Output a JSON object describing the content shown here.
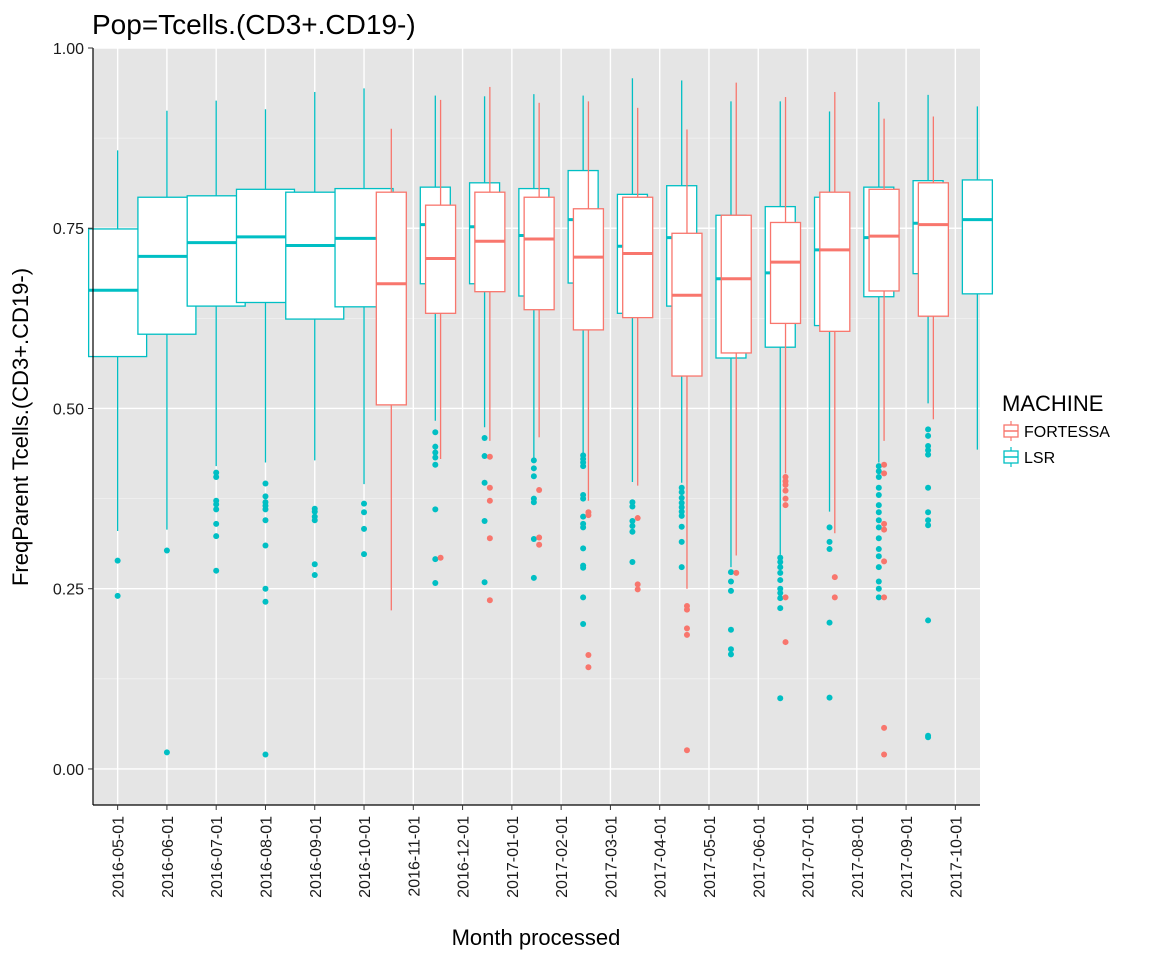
{
  "colors": {
    "FORTESSA": "#F8766D",
    "LSR": "#00BFC4",
    "panel": "#E5E5E5",
    "grid": "#FFFFFF"
  },
  "chart_data": {
    "type": "boxplot",
    "title": "Pop=Tcells.(CD3+.CD19-)",
    "xlabel": "Month processed",
    "ylabel": "FreqParent  Tcells.(CD3+.CD19-)",
    "ylim": [
      -0.05,
      1.0
    ],
    "yticks": [
      0.0,
      0.25,
      0.5,
      0.75,
      1.0
    ],
    "ytick_labels": [
      "0.00",
      "0.25",
      "0.50",
      "0.75",
      "1.00"
    ],
    "grid": true,
    "categories": [
      "2016-05-01",
      "2016-06-01",
      "2016-07-01",
      "2016-08-01",
      "2016-09-01",
      "2016-10-01",
      "2016-11-01",
      "2016-12-01",
      "2017-01-01",
      "2017-02-01",
      "2017-03-01",
      "2017-04-01",
      "2017-05-01",
      "2017-06-01",
      "2017-07-01",
      "2017-08-01",
      "2017-09-01",
      "2017-10-01"
    ],
    "legend": {
      "title": "MACHINE",
      "entries": [
        "FORTESSA",
        "LSR"
      ],
      "position": "right"
    },
    "series": [
      {
        "name": "FORTESSA",
        "boxes": [
          null,
          null,
          null,
          null,
          null,
          null,
          {
            "low": 0.22,
            "q1": 0.505,
            "median": 0.673,
            "q3": 0.8,
            "high": 0.888,
            "outliers": []
          },
          {
            "low": 0.43,
            "q1": 0.632,
            "median": 0.708,
            "q3": 0.782,
            "high": 0.928,
            "outliers": [
              0.293
            ]
          },
          {
            "low": 0.455,
            "q1": 0.662,
            "median": 0.732,
            "q3": 0.8,
            "high": 0.946,
            "outliers": [
              0.433,
              0.39,
              0.372,
              0.32,
              0.234
            ]
          },
          {
            "low": 0.46,
            "q1": 0.637,
            "median": 0.735,
            "q3": 0.793,
            "high": 0.924,
            "outliers": [
              0.387,
              0.321,
              0.311
            ]
          },
          {
            "low": 0.372,
            "q1": 0.609,
            "median": 0.71,
            "q3": 0.777,
            "high": 0.926,
            "outliers": [
              0.356,
              0.352,
              0.158,
              0.141
            ]
          },
          {
            "low": 0.393,
            "q1": 0.626,
            "median": 0.715,
            "q3": 0.793,
            "high": 0.917,
            "outliers": [
              0.348,
              0.256,
              0.249
            ]
          },
          {
            "low": 0.25,
            "q1": 0.545,
            "median": 0.657,
            "q3": 0.743,
            "high": 0.887,
            "outliers": [
              0.226,
              0.221,
              0.195,
              0.186,
              0.026
            ]
          },
          {
            "low": 0.296,
            "q1": 0.577,
            "median": 0.68,
            "q3": 0.768,
            "high": 0.952,
            "outliers": [
              0.272
            ]
          },
          {
            "low": 0.41,
            "q1": 0.618,
            "median": 0.703,
            "q3": 0.758,
            "high": 0.932,
            "outliers": [
              0.405,
              0.399,
              0.394,
              0.386,
              0.375,
              0.366,
              0.238,
              0.176
            ]
          },
          {
            "low": 0.327,
            "q1": 0.607,
            "median": 0.72,
            "q3": 0.8,
            "high": 0.939,
            "outliers": [
              0.266,
              0.238
            ]
          },
          {
            "low": 0.455,
            "q1": 0.663,
            "median": 0.739,
            "q3": 0.804,
            "high": 0.902,
            "outliers": [
              0.422,
              0.41,
              0.34,
              0.332,
              0.288,
              0.238,
              0.057,
              0.02
            ]
          },
          {
            "low": 0.485,
            "q1": 0.628,
            "median": 0.755,
            "q3": 0.813,
            "high": 0.905,
            "outliers": []
          }
        ]
      },
      {
        "name": "LSR",
        "boxes": [
          {
            "low": 0.33,
            "q1": 0.572,
            "median": 0.664,
            "q3": 0.749,
            "high": 0.858,
            "outliers": [
              0.289,
              0.24
            ]
          },
          {
            "low": 0.332,
            "q1": 0.603,
            "median": 0.711,
            "q3": 0.793,
            "high": 0.913,
            "outliers": [
              0.303,
              0.023
            ]
          },
          {
            "low": 0.42,
            "q1": 0.642,
            "median": 0.73,
            "q3": 0.795,
            "high": 0.927,
            "outliers": [
              0.411,
              0.405,
              0.372,
              0.367,
              0.36,
              0.34,
              0.323,
              0.275
            ]
          },
          {
            "low": 0.425,
            "q1": 0.647,
            "median": 0.738,
            "q3": 0.804,
            "high": 0.915,
            "outliers": [
              0.396,
              0.378,
              0.37,
              0.365,
              0.36,
              0.345,
              0.31,
              0.25,
              0.232,
              0.02
            ]
          },
          {
            "low": 0.428,
            "q1": 0.624,
            "median": 0.726,
            "q3": 0.8,
            "high": 0.939,
            "outliers": [
              0.361,
              0.357,
              0.35,
              0.345,
              0.284,
              0.269
            ]
          },
          {
            "low": 0.395,
            "q1": 0.641,
            "median": 0.736,
            "q3": 0.805,
            "high": 0.944,
            "outliers": [
              0.368,
              0.356,
              0.333,
              0.298
            ]
          },
          {
            "low": 0.483,
            "q1": 0.673,
            "median": 0.755,
            "q3": 0.807,
            "high": 0.934,
            "outliers": [
              0.467,
              0.447,
              0.439,
              0.432,
              0.422,
              0.36,
              0.291,
              0.258
            ]
          },
          {
            "low": 0.474,
            "q1": 0.673,
            "median": 0.752,
            "q3": 0.813,
            "high": 0.933,
            "outliers": [
              0.459,
              0.434,
              0.397,
              0.344,
              0.259
            ]
          },
          {
            "low": 0.429,
            "q1": 0.656,
            "median": 0.74,
            "q3": 0.805,
            "high": 0.936,
            "outliers": [
              0.428,
              0.417,
              0.406,
              0.375,
              0.37,
              0.319,
              0.265
            ]
          },
          {
            "low": 0.436,
            "q1": 0.674,
            "median": 0.762,
            "q3": 0.83,
            "high": 0.934,
            "outliers": [
              0.435,
              0.43,
              0.425,
              0.42,
              0.38,
              0.375,
              0.35,
              0.34,
              0.335,
              0.306,
              0.282,
              0.279,
              0.238,
              0.201
            ]
          },
          {
            "low": 0.398,
            "q1": 0.632,
            "median": 0.725,
            "q3": 0.797,
            "high": 0.958,
            "outliers": [
              0.37,
              0.364,
              0.344,
              0.337,
              0.329,
              0.287
            ]
          },
          {
            "low": 0.397,
            "q1": 0.642,
            "median": 0.737,
            "q3": 0.809,
            "high": 0.955,
            "outliers": [
              0.39,
              0.384,
              0.376,
              0.369,
              0.363,
              0.357,
              0.351,
              0.336,
              0.315,
              0.28
            ]
          },
          {
            "low": 0.28,
            "q1": 0.57,
            "median": 0.68,
            "q3": 0.768,
            "high": 0.926,
            "outliers": [
              0.273,
              0.26,
              0.247,
              0.193,
              0.166,
              0.159
            ]
          },
          {
            "low": 0.297,
            "q1": 0.585,
            "median": 0.688,
            "q3": 0.78,
            "high": 0.926,
            "outliers": [
              0.293,
              0.287,
              0.28,
              0.272,
              0.262,
              0.25,
              0.244,
              0.237,
              0.223,
              0.098
            ]
          },
          {
            "low": 0.357,
            "q1": 0.615,
            "median": 0.72,
            "q3": 0.793,
            "high": 0.912,
            "outliers": [
              0.335,
              0.315,
              0.305,
              0.203,
              0.099
            ]
          },
          {
            "low": 0.425,
            "q1": 0.655,
            "median": 0.737,
            "q3": 0.807,
            "high": 0.925,
            "outliers": [
              0.42,
              0.413,
              0.405,
              0.39,
              0.38,
              0.366,
              0.356,
              0.345,
              0.335,
              0.32,
              0.305,
              0.295,
              0.28,
              0.26,
              0.25,
              0.238
            ]
          },
          {
            "low": 0.507,
            "q1": 0.687,
            "median": 0.757,
            "q3": 0.816,
            "high": 0.935,
            "outliers": [
              0.471,
              0.462,
              0.448,
              0.442,
              0.436,
              0.39,
              0.356,
              0.345,
              0.338,
              0.206,
              0.046,
              0.044
            ]
          },
          {
            "low": 0.443,
            "q1": 0.659,
            "median": 0.762,
            "q3": 0.817,
            "high": 0.919,
            "outliers": []
          }
        ]
      }
    ]
  }
}
